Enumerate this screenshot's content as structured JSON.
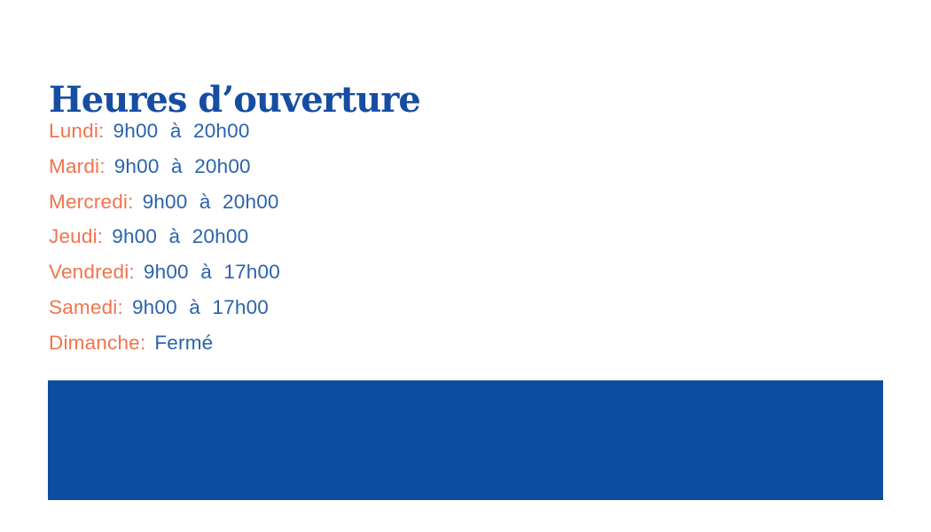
{
  "page": {
    "title": "Heures d’ouverture"
  },
  "hours": {
    "items": [
      {
        "day": "Lundi:",
        "time": "9h00 à 20h00"
      },
      {
        "day": "Mardi:",
        "time": "9h00 à 20h00"
      },
      {
        "day": "Mercredi:",
        "time": "9h00 à 20h00"
      },
      {
        "day": "Jeudi:",
        "time": "9h00 à 20h00"
      },
      {
        "day": "Vendredi:",
        "time": "9h00 à 17h00"
      },
      {
        "day": "Samedi:",
        "time": "9h00 à 17h00"
      },
      {
        "day": "Dimanche:",
        "time": "Fermé"
      }
    ]
  },
  "colors": {
    "title_blue": "#164DA3",
    "time_blue": "#2A63AE",
    "day_orange": "#F0744D",
    "banner_blue": "#0D4DA0"
  }
}
